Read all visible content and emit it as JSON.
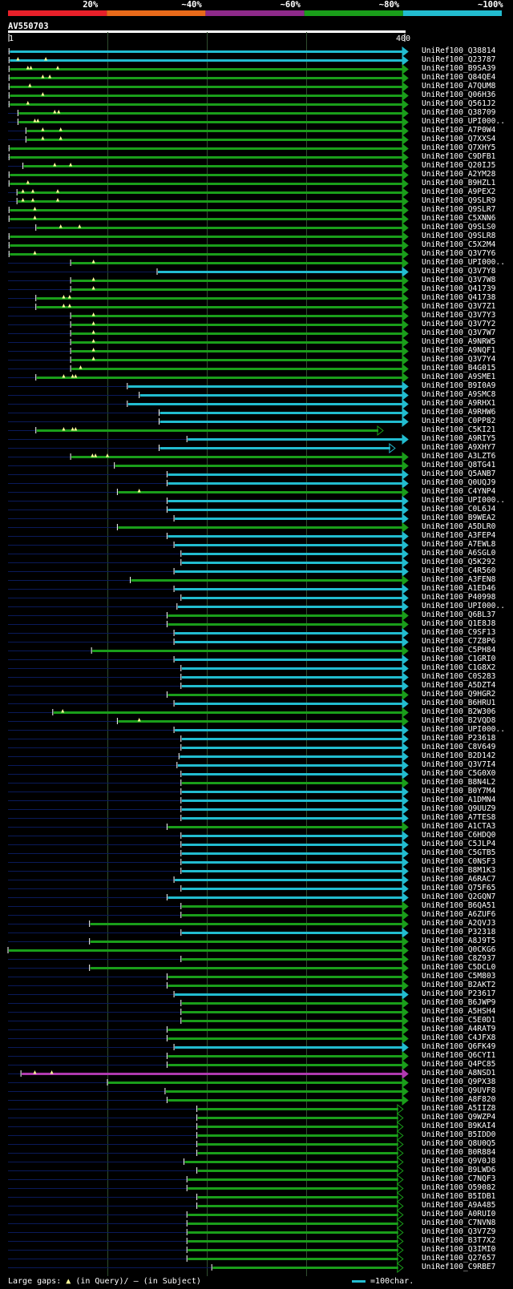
{
  "query": {
    "name": "AV550703",
    "start_label": "1",
    "end_label": "400",
    "length": 400
  },
  "legend": {
    "segments": [
      {
        "label": "20%",
        "color": "#e8202a"
      },
      {
        "label": "~40%",
        "color": "#e86a1a"
      },
      {
        "label": "~60%",
        "color": "#8e2a8a"
      },
      {
        "label": "~80%",
        "color": "#1a9e1a"
      },
      {
        "label": "~100%",
        "color": "#22bcd0"
      }
    ]
  },
  "colors": {
    "green": "#1a9e1a",
    "cyan": "#22bcd0",
    "magenta": "#b03ab0",
    "dark": "#0a1a5a",
    "gap": "#ffff99",
    "grid": "#2f4d2f"
  },
  "footer": {
    "large_gaps_label": "Large gaps:",
    "in_query_label": "(in Query)/",
    "in_subject_label": "(in Subject)",
    "scale_label": "=100char."
  },
  "hits": [
    {
      "name": "UniRef100_Q38814",
      "s": 1,
      "e": 400,
      "c": "cyan",
      "g": []
    },
    {
      "name": "UniRef100_Q23787",
      "s": 1,
      "e": 400,
      "c": "cyan",
      "g": [
        10,
        38
      ]
    },
    {
      "name": "UniRef100_B9SA39",
      "s": 1,
      "e": 400,
      "c": "green",
      "g": [
        20,
        23,
        50
      ]
    },
    {
      "name": "UniRef100_Q84QE4",
      "s": 1,
      "e": 400,
      "c": "green",
      "g": [
        35,
        42
      ]
    },
    {
      "name": "UniRef100_A7QUM8",
      "s": 1,
      "e": 400,
      "c": "green",
      "g": [
        22
      ]
    },
    {
      "name": "UniRef100_Q06H36",
      "s": 1,
      "e": 400,
      "c": "green",
      "g": [
        35
      ]
    },
    {
      "name": "UniRef100_Q561J2",
      "s": 1,
      "e": 400,
      "c": "green",
      "g": [
        20
      ]
    },
    {
      "name": "UniRef100_Q38709",
      "s": 10,
      "e": 400,
      "c": "green",
      "g": [
        47,
        51
      ]
    },
    {
      "name": "UniRef100_UPI000..",
      "s": 10,
      "e": 400,
      "c": "green",
      "g": [
        27,
        30
      ]
    },
    {
      "name": "UniRef100_A7P0W4",
      "s": 18,
      "e": 400,
      "c": "green",
      "g": [
        35,
        53
      ]
    },
    {
      "name": "UniRef100_Q7XXS4",
      "s": 18,
      "e": 400,
      "c": "green",
      "g": [
        35,
        53
      ]
    },
    {
      "name": "UniRef100_Q7XHY5",
      "s": 1,
      "e": 400,
      "c": "green",
      "g": []
    },
    {
      "name": "UniRef100_C9DFB1",
      "s": 1,
      "e": 400,
      "c": "green",
      "g": []
    },
    {
      "name": "UniRef100_Q20IJ5",
      "s": 15,
      "e": 400,
      "c": "green",
      "g": [
        47,
        63
      ]
    },
    {
      "name": "UniRef100_A2YM28",
      "s": 1,
      "e": 400,
      "c": "green",
      "g": []
    },
    {
      "name": "UniRef100_B9HZL1",
      "s": 1,
      "e": 400,
      "c": "green",
      "g": [
        20
      ]
    },
    {
      "name": "UniRef100_A9PEX2",
      "s": 9,
      "e": 400,
      "c": "green",
      "g": [
        15,
        25,
        50
      ]
    },
    {
      "name": "UniRef100_Q9SLR9",
      "s": 9,
      "e": 400,
      "c": "green",
      "g": [
        15,
        25,
        50
      ]
    },
    {
      "name": "UniRef100_Q9SLR7",
      "s": 1,
      "e": 400,
      "c": "green",
      "g": [
        27
      ]
    },
    {
      "name": "UniRef100_C5XNN6",
      "s": 1,
      "e": 400,
      "c": "green",
      "g": [
        27
      ]
    },
    {
      "name": "UniRef100_Q9SLS0",
      "s": 28,
      "e": 400,
      "c": "green",
      "g": [
        53,
        72
      ]
    },
    {
      "name": "UniRef100_Q9SLR8",
      "s": 1,
      "e": 400,
      "c": "green",
      "g": []
    },
    {
      "name": "UniRef100_C5X2M4",
      "s": 1,
      "e": 400,
      "c": "green",
      "g": []
    },
    {
      "name": "UniRef100_Q3V7Y6",
      "s": 1,
      "e": 400,
      "c": "green",
      "g": [
        27
      ]
    },
    {
      "name": "UniRef100_UPI000..",
      "s": 63,
      "e": 400,
      "c": "green",
      "g": [
        86
      ]
    },
    {
      "name": "UniRef100_Q3V7Y8",
      "s": 150,
      "e": 400,
      "c": "cyan",
      "g": []
    },
    {
      "name": "UniRef100_Q3V7W8",
      "s": 63,
      "e": 400,
      "c": "green",
      "g": [
        86
      ]
    },
    {
      "name": "UniRef100_Q41739",
      "s": 63,
      "e": 400,
      "c": "green",
      "g": [
        86
      ]
    },
    {
      "name": "UniRef100_Q41738",
      "s": 28,
      "e": 400,
      "c": "green",
      "g": [
        56,
        62
      ]
    },
    {
      "name": "UniRef100_Q3V7Z1",
      "s": 28,
      "e": 400,
      "c": "green",
      "g": [
        56,
        62
      ]
    },
    {
      "name": "UniRef100_Q3V7Y3",
      "s": 63,
      "e": 400,
      "c": "green",
      "g": [
        86
      ]
    },
    {
      "name": "UniRef100_Q3V7Y2",
      "s": 63,
      "e": 400,
      "c": "green",
      "g": [
        86
      ]
    },
    {
      "name": "UniRef100_Q3V7W7",
      "s": 63,
      "e": 400,
      "c": "green",
      "g": [
        86
      ]
    },
    {
      "name": "UniRef100_A9NRW5",
      "s": 63,
      "e": 400,
      "c": "green",
      "g": [
        86
      ]
    },
    {
      "name": "UniRef100_A9NQF1",
      "s": 63,
      "e": 400,
      "c": "green",
      "g": [
        86
      ]
    },
    {
      "name": "UniRef100_Q3V7Y4",
      "s": 63,
      "e": 400,
      "c": "green",
      "g": [
        86
      ]
    },
    {
      "name": "UniRef100_B4G015",
      "s": 63,
      "e": 400,
      "c": "green",
      "g": [
        73
      ]
    },
    {
      "name": "UniRef100_A9SME1",
      "s": 28,
      "e": 400,
      "c": "green",
      "g": [
        56,
        65,
        68
      ]
    },
    {
      "name": "UniRef100_B9I0A9",
      "s": 120,
      "e": 400,
      "c": "cyan",
      "g": []
    },
    {
      "name": "UniRef100_A9SMC8",
      "s": 132,
      "e": 400,
      "c": "cyan",
      "g": []
    },
    {
      "name": "UniRef100_A9RHX1",
      "s": 120,
      "e": 400,
      "c": "cyan",
      "g": []
    },
    {
      "name": "UniRef100_A9RHW6",
      "s": 152,
      "e": 400,
      "c": "cyan",
      "g": []
    },
    {
      "name": "UniRef100_C0PP82",
      "s": 152,
      "e": 400,
      "c": "cyan",
      "g": []
    },
    {
      "name": "UniRef100_C5KI21",
      "s": 28,
      "e": 375,
      "c": "green",
      "g": [
        56,
        65,
        68
      ]
    },
    {
      "name": "UniRef100_A9RIY5",
      "s": 180,
      "e": 400,
      "c": "cyan",
      "g": []
    },
    {
      "name": "UniRef100_A9XHY7",
      "s": 152,
      "e": 387,
      "c": "cyan",
      "g": []
    },
    {
      "name": "UniRef100_A3LZT6",
      "s": 63,
      "e": 400,
      "c": "green",
      "g": [
        85,
        88,
        100
      ]
    },
    {
      "name": "UniRef100_Q8TG41",
      "s": 107,
      "e": 400,
      "c": "green",
      "g": []
    },
    {
      "name": "UniRef100_Q5ANB7",
      "s": 160,
      "e": 400,
      "c": "cyan",
      "g": []
    },
    {
      "name": "UniRef100_Q0UQJ9",
      "s": 160,
      "e": 400,
      "c": "cyan",
      "g": []
    },
    {
      "name": "UniRef100_C4YNP4",
      "s": 110,
      "e": 400,
      "c": "green",
      "g": [
        132
      ]
    },
    {
      "name": "UniRef100_UPI000..",
      "s": 160,
      "e": 400,
      "c": "cyan",
      "g": []
    },
    {
      "name": "UniRef100_C0L6J4",
      "s": 160,
      "e": 400,
      "c": "cyan",
      "g": []
    },
    {
      "name": "UniRef100_B9WEA2",
      "s": 167,
      "e": 400,
      "c": "cyan",
      "g": []
    },
    {
      "name": "UniRef100_A5DLR0",
      "s": 110,
      "e": 400,
      "c": "green",
      "g": []
    },
    {
      "name": "UniRef100_A3FEP4",
      "s": 160,
      "e": 400,
      "c": "cyan",
      "g": []
    },
    {
      "name": "UniRef100_A7EWL8",
      "s": 167,
      "e": 400,
      "c": "cyan",
      "g": []
    },
    {
      "name": "UniRef100_A6SGL0",
      "s": 174,
      "e": 400,
      "c": "cyan",
      "g": []
    },
    {
      "name": "UniRef100_Q5K292",
      "s": 174,
      "e": 400,
      "c": "cyan",
      "g": []
    },
    {
      "name": "UniRef100_C4R560",
      "s": 167,
      "e": 400,
      "c": "cyan",
      "g": []
    },
    {
      "name": "UniRef100_A3FEN8",
      "s": 123,
      "e": 400,
      "c": "green",
      "g": []
    },
    {
      "name": "UniRef100_A1ED46",
      "s": 167,
      "e": 400,
      "c": "cyan",
      "g": []
    },
    {
      "name": "UniRef100_P40998",
      "s": 174,
      "e": 400,
      "c": "cyan",
      "g": []
    },
    {
      "name": "UniRef100_UPI000..",
      "s": 170,
      "e": 400,
      "c": "cyan",
      "g": []
    },
    {
      "name": "UniRef100_Q6BL37",
      "s": 160,
      "e": 400,
      "c": "green",
      "g": []
    },
    {
      "name": "UniRef100_Q1E8J8",
      "s": 160,
      "e": 400,
      "c": "green",
      "g": []
    },
    {
      "name": "UniRef100_C9SF13",
      "s": 167,
      "e": 400,
      "c": "cyan",
      "g": []
    },
    {
      "name": "UniRef100_C7Z8P6",
      "s": 167,
      "e": 400,
      "c": "cyan",
      "g": []
    },
    {
      "name": "UniRef100_C5PH84",
      "s": 84,
      "e": 400,
      "c": "green",
      "g": []
    },
    {
      "name": "UniRef100_C1GRI0",
      "s": 167,
      "e": 400,
      "c": "cyan",
      "g": []
    },
    {
      "name": "UniRef100_C1G8X2",
      "s": 174,
      "e": 400,
      "c": "cyan",
      "g": []
    },
    {
      "name": "UniRef100_C0S283",
      "s": 174,
      "e": 400,
      "c": "cyan",
      "g": []
    },
    {
      "name": "UniRef100_A5DZT4",
      "s": 174,
      "e": 400,
      "c": "cyan",
      "g": []
    },
    {
      "name": "UniRef100_Q9HGR2",
      "s": 160,
      "e": 400,
      "c": "green",
      "g": []
    },
    {
      "name": "UniRef100_B6HRU1",
      "s": 167,
      "e": 400,
      "c": "cyan",
      "g": []
    },
    {
      "name": "UniRef100_B2W306",
      "s": 45,
      "e": 400,
      "c": "green",
      "g": [
        55
      ]
    },
    {
      "name": "UniRef100_B2VQD8",
      "s": 110,
      "e": 400,
      "c": "green",
      "g": [
        132
      ]
    },
    {
      "name": "UniRef100_UPI000..",
      "s": 167,
      "e": 400,
      "c": "cyan",
      "g": []
    },
    {
      "name": "UniRef100_P23618",
      "s": 174,
      "e": 400,
      "c": "cyan",
      "g": []
    },
    {
      "name": "UniRef100_C8V649",
      "s": 174,
      "e": 400,
      "c": "cyan",
      "g": []
    },
    {
      "name": "UniRef100_B2D142",
      "s": 172,
      "e": 400,
      "c": "cyan",
      "g": []
    },
    {
      "name": "UniRef100_Q3V7I4",
      "s": 170,
      "e": 400,
      "c": "cyan",
      "g": []
    },
    {
      "name": "UniRef100_C5G0X0",
      "s": 174,
      "e": 400,
      "c": "cyan",
      "g": []
    },
    {
      "name": "UniRef100_B8N4L2",
      "s": 174,
      "e": 400,
      "c": "green",
      "g": []
    },
    {
      "name": "UniRef100_B0Y7M4",
      "s": 174,
      "e": 400,
      "c": "cyan",
      "g": []
    },
    {
      "name": "UniRef100_A1DMN4",
      "s": 174,
      "e": 400,
      "c": "cyan",
      "g": []
    },
    {
      "name": "UniRef100_Q9UUZ9",
      "s": 174,
      "e": 400,
      "c": "cyan",
      "g": []
    },
    {
      "name": "UniRef100_A7TES8",
      "s": 174,
      "e": 400,
      "c": "cyan",
      "g": []
    },
    {
      "name": "UniRef100_A1CTA3",
      "s": 160,
      "e": 400,
      "c": "green",
      "g": []
    },
    {
      "name": "UniRef100_C6HDQ0",
      "s": 174,
      "e": 400,
      "c": "cyan",
      "g": []
    },
    {
      "name": "UniRef100_C5JLP4",
      "s": 174,
      "e": 400,
      "c": "cyan",
      "g": []
    },
    {
      "name": "UniRef100_C5GTB5",
      "s": 174,
      "e": 400,
      "c": "cyan",
      "g": []
    },
    {
      "name": "UniRef100_C0NSF3",
      "s": 174,
      "e": 400,
      "c": "cyan",
      "g": []
    },
    {
      "name": "UniRef100_B8M1K3",
      "s": 174,
      "e": 400,
      "c": "cyan",
      "g": []
    },
    {
      "name": "UniRef100_A6RAC7",
      "s": 167,
      "e": 400,
      "c": "cyan",
      "g": []
    },
    {
      "name": "UniRef100_Q75F65",
      "s": 174,
      "e": 400,
      "c": "cyan",
      "g": []
    },
    {
      "name": "UniRef100_Q2GQN7",
      "s": 160,
      "e": 400,
      "c": "cyan",
      "g": []
    },
    {
      "name": "UniRef100_B6QA51",
      "s": 174,
      "e": 400,
      "c": "green",
      "g": []
    },
    {
      "name": "UniRef100_A6ZUF6",
      "s": 174,
      "e": 400,
      "c": "green",
      "g": []
    },
    {
      "name": "UniRef100_A2QVJ3",
      "s": 82,
      "e": 400,
      "c": "green",
      "g": []
    },
    {
      "name": "UniRef100_P32318",
      "s": 174,
      "e": 400,
      "c": "cyan",
      "g": []
    },
    {
      "name": "UniRef100_A8J9T5",
      "s": 82,
      "e": 400,
      "c": "green",
      "g": []
    },
    {
      "name": "UniRef100_Q0CKG6",
      "s": -6,
      "e": 400,
      "c": "green",
      "g": []
    },
    {
      "name": "UniRef100_C8Z937",
      "s": 174,
      "e": 400,
      "c": "green",
      "g": []
    },
    {
      "name": "UniRef100_C5DCL0",
      "s": 82,
      "e": 400,
      "c": "green",
      "g": []
    },
    {
      "name": "UniRef100_C5M803",
      "s": 160,
      "e": 400,
      "c": "green",
      "g": []
    },
    {
      "name": "UniRef100_B2AKT2",
      "s": 160,
      "e": 400,
      "c": "green",
      "g": []
    },
    {
      "name": "UniRef100_P23617",
      "s": 167,
      "e": 400,
      "c": "cyan",
      "g": []
    },
    {
      "name": "UniRef100_B6JWP9",
      "s": 174,
      "e": 400,
      "c": "green",
      "g": []
    },
    {
      "name": "UniRef100_A5HSH4",
      "s": 174,
      "e": 400,
      "c": "green",
      "g": []
    },
    {
      "name": "UniRef100_C5E0D1",
      "s": 174,
      "e": 400,
      "c": "green",
      "g": []
    },
    {
      "name": "UniRef100_A4RAT9",
      "s": 160,
      "e": 400,
      "c": "green",
      "g": []
    },
    {
      "name": "UniRef100_C4JFX8",
      "s": 160,
      "e": 400,
      "c": "green",
      "g": []
    },
    {
      "name": "UniRef100_Q6FK49",
      "s": 167,
      "e": 400,
      "c": "cyan",
      "g": []
    },
    {
      "name": "UniRef100_Q6CYI1",
      "s": 160,
      "e": 400,
      "c": "green",
      "g": []
    },
    {
      "name": "UniRef100_Q4PC85",
      "s": 160,
      "e": 400,
      "c": "green",
      "g": []
    },
    {
      "name": "UniRef100_A8NSD1",
      "s": 13,
      "e": 400,
      "c": "magenta",
      "g": [
        27,
        44
      ]
    },
    {
      "name": "UniRef100_Q9PX38",
      "s": 100,
      "e": 400,
      "c": "green",
      "g": []
    },
    {
      "name": "UniRef100_Q9UVF8",
      "s": 158,
      "e": 400,
      "c": "green",
      "g": []
    },
    {
      "name": "UniRef100_A8F820",
      "s": 160,
      "e": 400,
      "c": "green",
      "g": []
    },
    {
      "name": "UniRef100_A5IIZ8",
      "s": 190,
      "e": 395,
      "c": "green",
      "g": []
    },
    {
      "name": "UniRef100_Q9WZP4",
      "s": 190,
      "e": 395,
      "c": "green",
      "g": []
    },
    {
      "name": "UniRef100_B9KAI4",
      "s": 190,
      "e": 395,
      "c": "green",
      "g": []
    },
    {
      "name": "UniRef100_B5IDD0",
      "s": 190,
      "e": 395,
      "c": "green",
      "g": []
    },
    {
      "name": "UniRef100_Q8U0Q5",
      "s": 190,
      "e": 395,
      "c": "green",
      "g": []
    },
    {
      "name": "UniRef100_B0R884",
      "s": 190,
      "e": 395,
      "c": "green",
      "g": []
    },
    {
      "name": "UniRef100_Q9V0J8",
      "s": 177,
      "e": 395,
      "c": "green",
      "g": []
    },
    {
      "name": "UniRef100_B9LWD6",
      "s": 190,
      "e": 395,
      "c": "green",
      "g": []
    },
    {
      "name": "UniRef100_C7NQF3",
      "s": 180,
      "e": 395,
      "c": "green",
      "g": []
    },
    {
      "name": "UniRef100_O59082",
      "s": 180,
      "e": 395,
      "c": "green",
      "g": []
    },
    {
      "name": "UniRef100_B5IDB1",
      "s": 190,
      "e": 395,
      "c": "green",
      "g": []
    },
    {
      "name": "UniRef100_A9A485",
      "s": 190,
      "e": 395,
      "c": "green",
      "g": []
    },
    {
      "name": "UniRef100_A0RUI0",
      "s": 180,
      "e": 395,
      "c": "green",
      "g": []
    },
    {
      "name": "UniRef100_C7NVN8",
      "s": 180,
      "e": 395,
      "c": "green",
      "g": []
    },
    {
      "name": "UniRef100_Q3V7Z9",
      "s": 180,
      "e": 395,
      "c": "green",
      "g": []
    },
    {
      "name": "UniRef100_B3T7X2",
      "s": 180,
      "e": 395,
      "c": "green",
      "g": []
    },
    {
      "name": "UniRef100_Q3IMI0",
      "s": 180,
      "e": 395,
      "c": "green",
      "g": []
    },
    {
      "name": "UniRef100_Q27657",
      "s": 180,
      "e": 395,
      "c": "green",
      "g": []
    },
    {
      "name": "UniRef100_C9RBE7",
      "s": 205,
      "e": 395,
      "c": "green",
      "g": []
    }
  ]
}
